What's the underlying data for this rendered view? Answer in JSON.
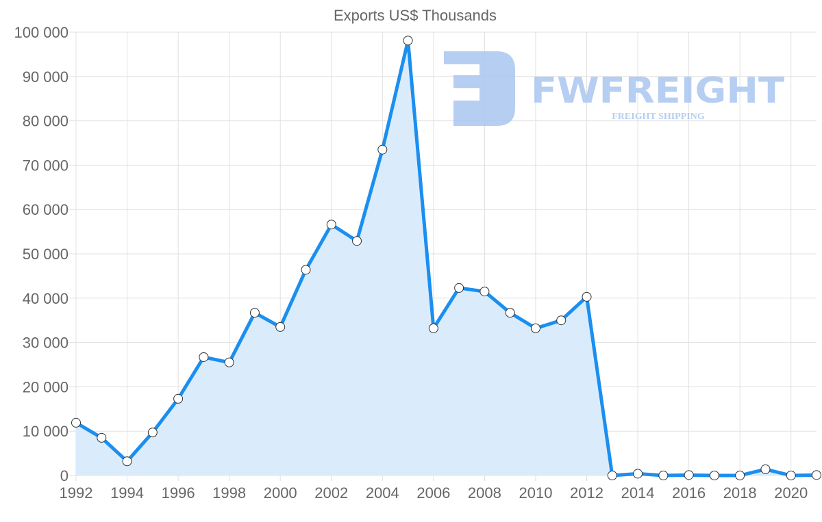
{
  "chart_data": {
    "type": "area",
    "title": "Exports US$ Thousands",
    "xlabel": "",
    "ylabel": "",
    "ylim": [
      0,
      100000
    ],
    "yticks": [
      0,
      10000,
      20000,
      30000,
      40000,
      50000,
      60000,
      70000,
      80000,
      90000,
      100000
    ],
    "ytick_labels": [
      "0",
      "10 000",
      "20 000",
      "30 000",
      "40 000",
      "50 000",
      "60 000",
      "70 000",
      "80 000",
      "90 000",
      "100 000"
    ],
    "xtick_labels": [
      "1992",
      "1994",
      "1996",
      "1998",
      "2000",
      "2002",
      "2004",
      "2006",
      "2008",
      "2010",
      "2012",
      "2014",
      "2016",
      "2018",
      "2020"
    ],
    "grid": true,
    "legend": null,
    "categories": [
      1992,
      1993,
      1994,
      1995,
      1996,
      1997,
      1998,
      1999,
      2000,
      2001,
      2002,
      2003,
      2004,
      2005,
      2006,
      2007,
      2008,
      2009,
      2010,
      2011,
      2012,
      2013,
      2014,
      2015,
      2016,
      2017,
      2018,
      2019,
      2020,
      2021
    ],
    "series": [
      {
        "name": "Exports US$ Thousands",
        "color": "#1b8ff0",
        "fill": "#d8ebfb",
        "values": [
          11900,
          8500,
          3200,
          9700,
          17300,
          26700,
          25500,
          36700,
          33500,
          46400,
          56600,
          52900,
          73500,
          98100,
          33200,
          42300,
          41500,
          36700,
          33200,
          35000,
          40300,
          0,
          400,
          0,
          100,
          0,
          0,
          1400,
          0,
          100
        ]
      }
    ]
  },
  "watermark": {
    "brand": "FWFREIGHT",
    "tagline": "FREIGHT SHIPPING",
    "color": "#a9c6f0"
  }
}
